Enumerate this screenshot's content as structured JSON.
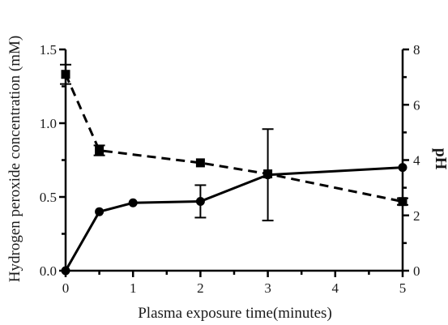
{
  "chart_data": {
    "type": "line",
    "xlabel": "Plasma exposure time(minutes)",
    "ylabel_left": "Hydrogen peroxide concentration (mM)",
    "ylabel_right": "pH",
    "xlim": [
      0,
      5
    ],
    "ylim_left": [
      0,
      1.5
    ],
    "ylim_right": [
      0,
      8
    ],
    "x_ticks": [
      "0",
      "1",
      "2",
      "3",
      "4",
      "5"
    ],
    "y_left_ticks": [
      "0.0",
      "0.5",
      "1.0",
      "1.5"
    ],
    "y_right_ticks": [
      "0",
      "2",
      "4",
      "6",
      "8"
    ],
    "grid": false,
    "series": [
      {
        "axis": "left",
        "line_style": "solid",
        "marker": "circle",
        "color": "#000000",
        "points": [
          {
            "x": 0,
            "y": 0.0,
            "err": 0
          },
          {
            "x": 0.5,
            "y": 0.4,
            "err": 0
          },
          {
            "x": 1,
            "y": 0.46,
            "err": 0
          },
          {
            "x": 2,
            "y": 0.47,
            "err": 0.11
          },
          {
            "x": 3,
            "y": 0.65,
            "err": 0.31
          },
          {
            "x": 5,
            "y": 0.7,
            "err": 0
          }
        ]
      },
      {
        "axis": "right",
        "line_style": "dashed",
        "marker": "square",
        "color": "#000000",
        "points": [
          {
            "x": 0,
            "y": 7.1,
            "err": 0.35
          },
          {
            "x": 0.5,
            "y": 4.35,
            "err": 0.18
          },
          {
            "x": 2,
            "y": 3.9,
            "err": 0
          },
          {
            "x": 3,
            "y": 3.5,
            "err": 0
          },
          {
            "x": 5,
            "y": 2.5,
            "err": 0.12
          }
        ]
      }
    ]
  }
}
